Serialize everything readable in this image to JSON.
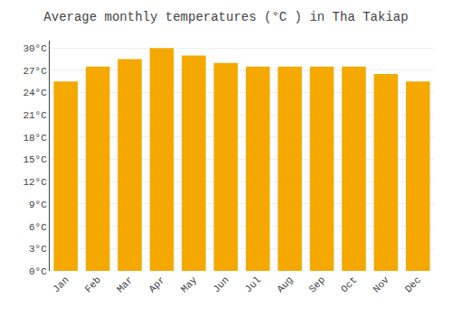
{
  "chart_data": {
    "type": "bar",
    "title": "Average monthly temperatures (°C ) in Tha Takiap",
    "categories": [
      "Jan",
      "Feb",
      "Mar",
      "Apr",
      "May",
      "Jun",
      "Jul",
      "Aug",
      "Sep",
      "Oct",
      "Nov",
      "Dec"
    ],
    "values": [
      25.5,
      27.5,
      28.5,
      30.0,
      29.0,
      28.0,
      27.5,
      27.5,
      27.5,
      27.5,
      26.5,
      25.5
    ],
    "color": "#F5A800",
    "ylim": [
      0,
      31
    ],
    "yticks": [
      {
        "value": 0,
        "label": "0°C"
      },
      {
        "value": 3,
        "label": "3°C"
      },
      {
        "value": 6,
        "label": "6°C"
      },
      {
        "value": 9,
        "label": "9°C"
      },
      {
        "value": 12,
        "label": "12°C"
      },
      {
        "value": 15,
        "label": "15°C"
      },
      {
        "value": 18,
        "label": "18°C"
      },
      {
        "value": 21,
        "label": "21°C"
      },
      {
        "value": 24,
        "label": "24°C"
      },
      {
        "value": 27,
        "label": "27°C"
      },
      {
        "value": 30,
        "label": "30°C"
      }
    ],
    "grid": true
  }
}
